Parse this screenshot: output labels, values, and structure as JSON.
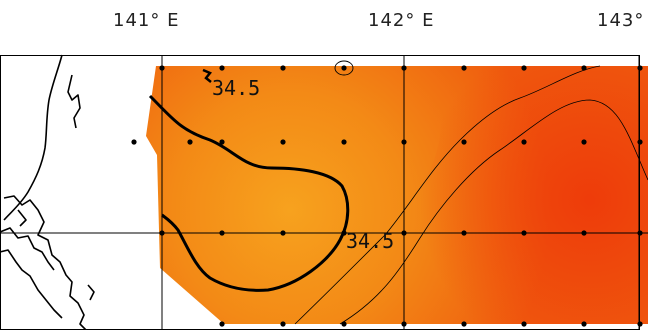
{
  "longitude_labels": {
    "lon_141": "141° E",
    "lon_142": "142° E",
    "lon_143": "143°"
  },
  "contour_labels": {
    "north": "34.5",
    "center": "34.5"
  },
  "colors": {
    "field_light": "#f7a21e",
    "field_mid": "#f37a12",
    "field_dark": "#ee3e0a",
    "coast": "#000000",
    "grid": "#000000",
    "contour": "#000000",
    "station": "#000000"
  }
}
